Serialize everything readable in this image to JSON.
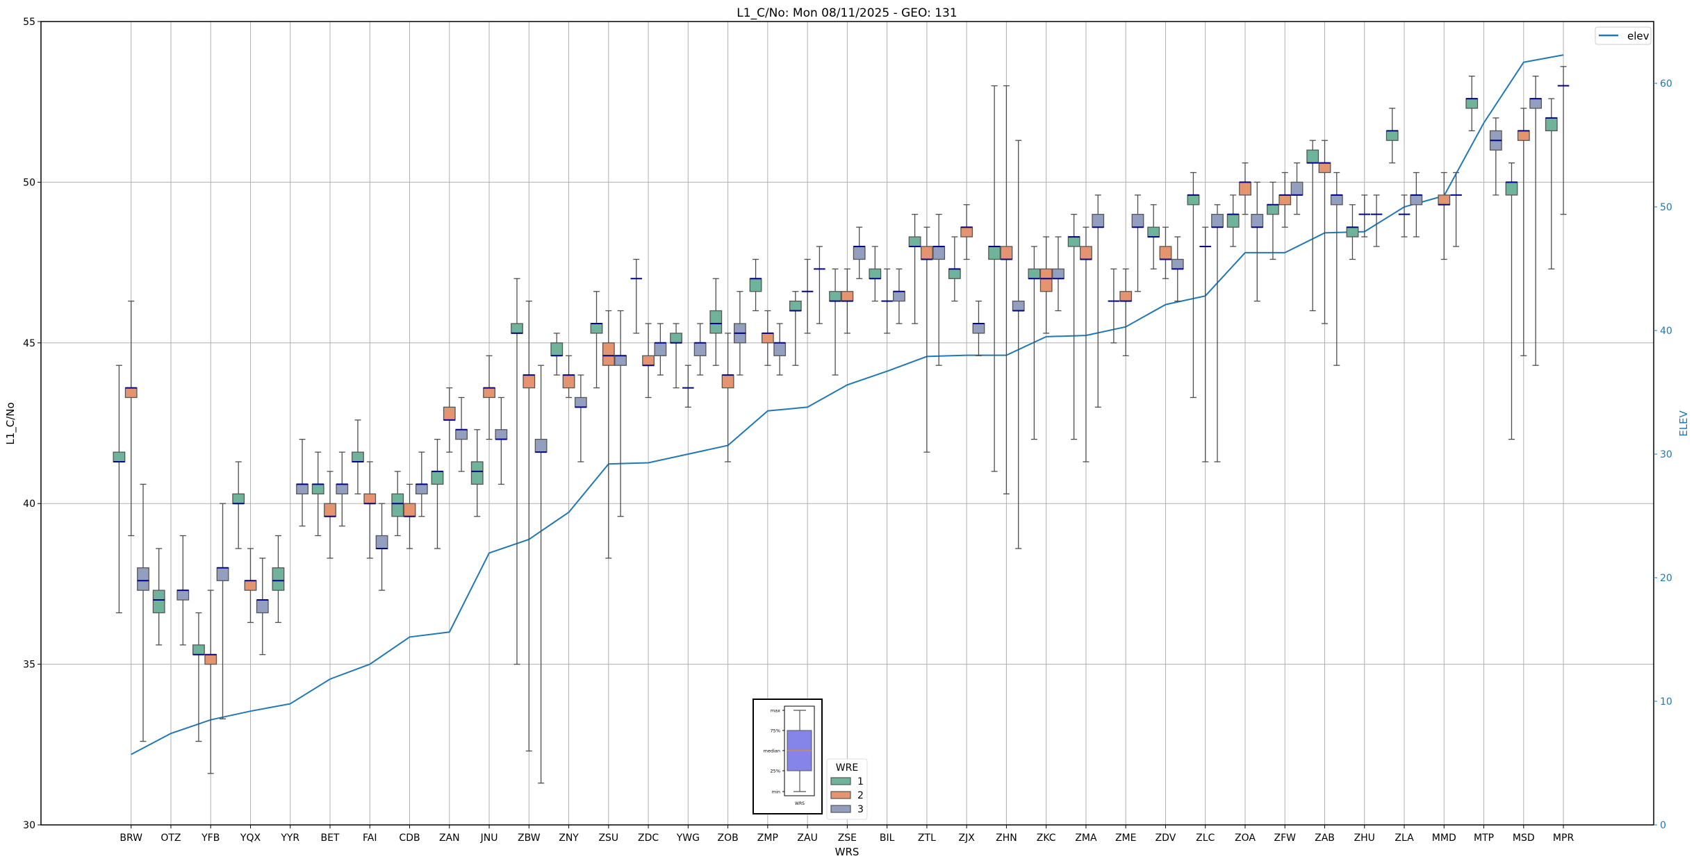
{
  "chart_data": {
    "type": "box",
    "title": "L1_C/No: Mon 08/11/2025 - GEO: 131",
    "xlabel": "WRS",
    "ylabel": "L1_C/No",
    "ylabel_right": "ELEV",
    "ylim": [
      30,
      55
    ],
    "yticks": [
      30,
      35,
      40,
      45,
      50,
      55
    ],
    "ylim_right": [
      0,
      65
    ],
    "yticks_right": [
      0,
      10,
      20,
      30,
      40,
      50,
      60
    ],
    "grid": true,
    "categories": [
      "BRW",
      "OTZ",
      "YFB",
      "YQX",
      "YYR",
      "BET",
      "FAI",
      "CDB",
      "ZAN",
      "JNU",
      "ZBW",
      "ZNY",
      "ZSU",
      "ZDC",
      "YWG",
      "ZOB",
      "ZMP",
      "ZAU",
      "ZSE",
      "BIL",
      "ZTL",
      "ZJX",
      "ZHN",
      "ZKC",
      "ZMA",
      "ZME",
      "ZDV",
      "ZLC",
      "ZOA",
      "ZFW",
      "ZAB",
      "ZHU",
      "ZLA",
      "MMD",
      "MTP",
      "MSD",
      "MPR"
    ],
    "box_fields": [
      "min",
      "q1",
      "median",
      "q3",
      "max"
    ],
    "hue_title": "WRE",
    "hue_levels": [
      {
        "name": "1",
        "color": "#6fb39a"
      },
      {
        "name": "2",
        "color": "#e4956f"
      },
      {
        "name": "3",
        "color": "#939fbf"
      }
    ],
    "boxes": {
      "BRW": {
        "1": [
          36.6,
          41.3,
          41.3,
          41.6,
          44.3
        ],
        "2": [
          39.0,
          43.3,
          43.6,
          43.6,
          46.3
        ],
        "3": [
          32.6,
          37.3,
          37.6,
          38.0,
          40.6
        ]
      },
      "OTZ": {
        "1": [
          35.6,
          36.6,
          37.0,
          37.3,
          38.6
        ],
        "3": [
          35.6,
          37.0,
          37.3,
          37.3,
          39.0
        ]
      },
      "YFB": {
        "1": [
          32.6,
          35.3,
          35.3,
          35.6,
          36.6
        ],
        "2": [
          31.6,
          35.0,
          35.3,
          35.3,
          37.3
        ],
        "3": [
          33.3,
          37.6,
          38.0,
          38.0,
          40.0
        ]
      },
      "YQX": {
        "1": [
          38.6,
          40.0,
          40.0,
          40.3,
          41.3
        ],
        "2": [
          36.3,
          37.3,
          37.6,
          37.6,
          38.6
        ],
        "3": [
          35.3,
          36.6,
          37.0,
          37.0,
          38.3
        ]
      },
      "YYR": {
        "1": [
          36.3,
          37.3,
          37.6,
          38.0,
          39.0
        ],
        "3": [
          39.3,
          40.3,
          40.6,
          40.6,
          42.0
        ]
      },
      "BET": {
        "1": [
          39.0,
          40.3,
          40.6,
          40.6,
          41.6
        ],
        "2": [
          38.3,
          39.6,
          39.6,
          40.0,
          41.0
        ],
        "3": [
          39.3,
          40.3,
          40.6,
          40.6,
          41.6
        ]
      },
      "FAI": {
        "1": [
          40.3,
          41.3,
          41.3,
          41.6,
          42.6
        ],
        "2": [
          38.3,
          40.0,
          40.0,
          40.3,
          41.3
        ],
        "3": [
          37.3,
          38.6,
          38.6,
          39.0,
          40.0
        ]
      },
      "CDB": {
        "1": [
          39.0,
          39.6,
          40.0,
          40.3,
          41.0
        ],
        "2": [
          38.6,
          39.6,
          39.6,
          40.0,
          40.6
        ],
        "3": [
          39.6,
          40.3,
          40.6,
          40.6,
          41.6
        ]
      },
      "ZAN": {
        "1": [
          38.6,
          40.6,
          41.0,
          41.0,
          42.0
        ],
        "2": [
          41.6,
          42.6,
          42.6,
          43.0,
          43.6
        ],
        "3": [
          41.0,
          42.0,
          42.3,
          42.3,
          43.3
        ]
      },
      "JNU": {
        "1": [
          39.6,
          40.6,
          41.0,
          41.3,
          42.3
        ],
        "2": [
          42.0,
          43.3,
          43.6,
          43.6,
          44.6
        ],
        "3": [
          40.6,
          42.0,
          42.0,
          42.3,
          43.3
        ]
      },
      "ZBW": {
        "1": [
          35.0,
          45.3,
          45.3,
          45.6,
          47.0
        ],
        "2": [
          32.3,
          43.6,
          44.0,
          44.0,
          46.3
        ],
        "3": [
          31.3,
          41.6,
          41.6,
          42.0,
          44.3
        ]
      },
      "ZNY": {
        "1": [
          44.0,
          44.6,
          44.6,
          45.0,
          45.3
        ],
        "2": [
          43.3,
          43.6,
          44.0,
          44.0,
          44.6
        ],
        "3": [
          41.3,
          43.0,
          43.0,
          43.3,
          44.0
        ]
      },
      "ZSU": {
        "1": [
          43.6,
          45.3,
          45.6,
          45.6,
          46.6
        ],
        "2": [
          38.3,
          44.3,
          44.6,
          45.0,
          46.0
        ],
        "3": [
          39.6,
          44.3,
          44.6,
          44.6,
          46.0
        ]
      },
      "ZDC": {
        "1": [
          45.3,
          47.0,
          47.0,
          47.0,
          47.6
        ],
        "2": [
          43.3,
          44.3,
          44.3,
          44.6,
          45.6
        ],
        "3": [
          44.0,
          44.6,
          45.0,
          45.0,
          45.6
        ]
      },
      "YWG": {
        "1": [
          43.6,
          45.0,
          45.0,
          45.3,
          45.6
        ],
        "2": [
          43.0,
          43.6,
          43.6,
          43.6,
          44.3
        ],
        "3": [
          44.0,
          44.6,
          45.0,
          45.0,
          45.6
        ]
      },
      "ZOB": {
        "1": [
          44.3,
          45.3,
          45.6,
          46.0,
          47.0
        ],
        "2": [
          41.3,
          43.6,
          44.0,
          44.0,
          45.3
        ],
        "3": [
          44.0,
          45.0,
          45.3,
          45.6,
          46.6
        ]
      },
      "ZMP": {
        "1": [
          46.0,
          46.6,
          47.0,
          47.0,
          47.6
        ],
        "2": [
          44.3,
          45.0,
          45.3,
          45.3,
          46.0
        ],
        "3": [
          44.0,
          44.6,
          45.0,
          45.0,
          45.6
        ]
      },
      "ZAU": {
        "1": [
          44.3,
          46.0,
          46.0,
          46.3,
          46.6
        ],
        "2": [
          45.3,
          46.6,
          46.6,
          46.6,
          47.6
        ],
        "3": [
          45.6,
          47.3,
          47.3,
          47.3,
          48.0
        ]
      },
      "ZSE": {
        "1": [
          44.0,
          46.3,
          46.3,
          46.6,
          47.3
        ],
        "2": [
          45.3,
          46.3,
          46.3,
          46.6,
          47.3
        ],
        "3": [
          47.0,
          47.6,
          48.0,
          48.0,
          48.6
        ]
      },
      "BIL": {
        "1": [
          46.3,
          47.0,
          47.0,
          47.3,
          48.0
        ],
        "2": [
          45.3,
          46.3,
          46.3,
          46.3,
          47.3
        ],
        "3": [
          45.6,
          46.3,
          46.6,
          46.6,
          47.3
        ]
      },
      "ZTL": {
        "1": [
          45.6,
          48.0,
          48.0,
          48.3,
          49.0
        ],
        "2": [
          41.6,
          47.6,
          47.6,
          48.0,
          48.6
        ],
        "3": [
          44.3,
          47.6,
          48.0,
          48.0,
          49.0
        ]
      },
      "ZJX": {
        "1": [
          46.3,
          47.0,
          47.3,
          47.3,
          48.3
        ],
        "2": [
          47.6,
          48.3,
          48.6,
          48.6,
          49.3
        ],
        "3": [
          44.6,
          45.3,
          45.6,
          45.6,
          46.3
        ]
      },
      "ZHN": {
        "1": [
          41.0,
          47.6,
          48.0,
          48.0,
          53.0
        ],
        "2": [
          40.3,
          47.6,
          47.6,
          48.0,
          53.0
        ],
        "3": [
          38.6,
          46.0,
          46.0,
          46.3,
          51.3
        ]
      },
      "ZKC": {
        "1": [
          42.0,
          47.0,
          47.0,
          47.3,
          48.0
        ],
        "2": [
          45.3,
          46.6,
          47.0,
          47.3,
          48.3
        ],
        "3": [
          46.0,
          47.0,
          47.0,
          47.3,
          48.3
        ]
      },
      "ZMA": {
        "1": [
          42.0,
          48.0,
          48.3,
          48.3,
          49.0
        ],
        "2": [
          41.3,
          47.6,
          47.6,
          48.0,
          48.6
        ],
        "3": [
          43.0,
          48.6,
          48.6,
          49.0,
          49.6
        ]
      },
      "ZME": {
        "1": [
          45.0,
          46.3,
          46.3,
          46.3,
          47.3
        ],
        "2": [
          44.6,
          46.3,
          46.3,
          46.6,
          47.3
        ],
        "3": [
          46.6,
          48.6,
          48.6,
          49.0,
          49.6
        ]
      },
      "ZDV": {
        "1": [
          47.3,
          48.3,
          48.3,
          48.6,
          49.3
        ],
        "2": [
          47.0,
          47.6,
          47.6,
          48.0,
          48.6
        ],
        "3": [
          46.3,
          47.3,
          47.3,
          47.6,
          48.3
        ]
      },
      "ZLC": {
        "1": [
          43.3,
          49.3,
          49.6,
          49.6,
          50.3
        ],
        "2": [
          41.3,
          48.0,
          48.0,
          48.0,
          48.6
        ],
        "3": [
          41.3,
          48.6,
          48.6,
          49.0,
          49.3
        ]
      },
      "ZOA": {
        "1": [
          48.0,
          48.6,
          49.0,
          49.0,
          49.6
        ],
        "2": [
          49.0,
          49.6,
          50.0,
          50.0,
          50.6
        ],
        "3": [
          46.3,
          48.6,
          48.6,
          49.0,
          50.0
        ]
      },
      "ZFW": {
        "1": [
          47.6,
          49.0,
          49.3,
          49.3,
          50.0
        ],
        "2": [
          48.6,
          49.3,
          49.6,
          49.6,
          50.3
        ],
        "3": [
          49.0,
          49.6,
          49.6,
          50.0,
          50.6
        ]
      },
      "ZAB": {
        "1": [
          46.0,
          50.6,
          50.6,
          51.0,
          51.3
        ],
        "2": [
          45.6,
          50.3,
          50.6,
          50.6,
          51.3
        ],
        "3": [
          44.3,
          49.3,
          49.6,
          49.6,
          50.3
        ]
      },
      "ZHU": {
        "1": [
          47.6,
          48.3,
          48.6,
          48.6,
          49.3
        ],
        "2": [
          48.3,
          49.0,
          49.0,
          49.0,
          49.6
        ],
        "3": [
          48.0,
          49.0,
          49.0,
          49.0,
          49.6
        ]
      },
      "ZLA": {
        "1": [
          50.6,
          51.3,
          51.6,
          51.6,
          52.3
        ],
        "2": [
          48.3,
          49.0,
          49.0,
          49.0,
          49.6
        ],
        "3": [
          48.3,
          49.3,
          49.6,
          49.6,
          50.3
        ]
      },
      "MMD": {
        "2": [
          47.6,
          49.3,
          49.3,
          49.6,
          50.3
        ],
        "3": [
          48.0,
          49.6,
          49.6,
          49.6,
          50.3
        ]
      },
      "MTP": {
        "1": [
          51.6,
          52.3,
          52.6,
          52.6,
          53.3
        ],
        "3": [
          49.6,
          51.0,
          51.3,
          51.6,
          52.0
        ]
      },
      "MSD": {
        "1": [
          42.0,
          49.6,
          50.0,
          50.0,
          50.6
        ],
        "2": [
          44.6,
          51.3,
          51.6,
          51.6,
          52.3
        ],
        "3": [
          44.3,
          52.3,
          52.6,
          52.6,
          53.3
        ]
      },
      "MPR": {
        "1": [
          47.3,
          51.6,
          52.0,
          52.0,
          52.6
        ],
        "2": [
          49.0,
          53.0,
          53.0,
          53.0,
          53.6
        ]
      }
    },
    "elev_series": {
      "name": "elev",
      "color": "#1f77b4",
      "values": [
        5.7,
        7.4,
        8.5,
        9.2,
        9.8,
        11.8,
        13.0,
        15.2,
        15.6,
        22.0,
        23.1,
        25.3,
        29.2,
        29.3,
        30.0,
        30.7,
        33.5,
        33.8,
        35.6,
        36.7,
        37.9,
        38.0,
        38.0,
        39.5,
        39.6,
        40.3,
        42.1,
        42.8,
        46.3,
        46.3,
        47.9,
        48.0,
        50.0,
        50.9,
        56.8,
        61.7,
        62.3
      ]
    },
    "legend_elev_placement": "top-right",
    "legend_wre_placement": "bottom-center",
    "inset_key": {
      "labels": [
        "max",
        "75%",
        "median",
        "25%",
        "min"
      ],
      "xlabel": "WRS",
      "box_color": "#8585e8",
      "median_color": "#ff8c00"
    }
  }
}
